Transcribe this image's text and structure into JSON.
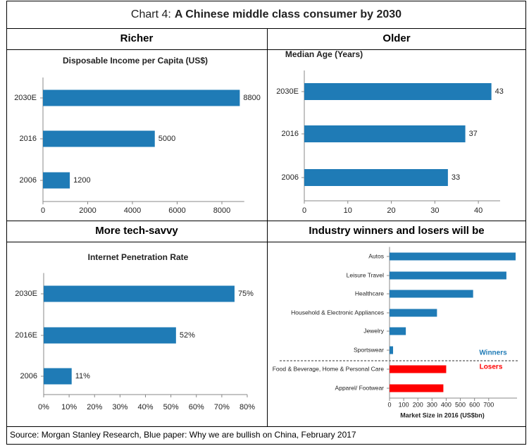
{
  "header": {
    "label": "Chart 4:",
    "title": "A Chinese middle class consumer by 2030"
  },
  "sections": [
    "Richer",
    "Older",
    "More tech-savvy",
    "Industry winners and losers will be"
  ],
  "chart_data": [
    {
      "type": "bar",
      "orientation": "horizontal",
      "title": "Disposable Income per Capita (US$)",
      "categories": [
        "2030E",
        "2016",
        "2006"
      ],
      "values": [
        8800,
        5000,
        1200
      ],
      "color": "#1f7bb6",
      "xlim": [
        0,
        9000
      ],
      "xticks": [
        0,
        2000,
        4000,
        6000,
        8000
      ]
    },
    {
      "type": "bar",
      "orientation": "horizontal",
      "title": "Median Age (Years)",
      "categories": [
        "2030E",
        "2016",
        "2006"
      ],
      "values": [
        43,
        37,
        33
      ],
      "color": "#1f7bb6",
      "xlim": [
        0,
        45
      ],
      "xticks": [
        0,
        10,
        20,
        30,
        40
      ]
    },
    {
      "type": "bar",
      "orientation": "horizontal",
      "title": "Internet Penetration Rate",
      "categories": [
        "2030E",
        "2016E",
        "2006"
      ],
      "values": [
        75,
        52,
        11
      ],
      "value_labels": [
        "75%",
        "52%",
        "11%"
      ],
      "color": "#1f7bb6",
      "xlim": [
        0,
        80
      ],
      "xticks": [
        {
          "value": 0,
          "label": "0%"
        },
        {
          "value": 10,
          "label": "10%"
        },
        {
          "value": 20,
          "label": "20%"
        },
        {
          "value": 30,
          "label": "30%"
        },
        {
          "value": 40,
          "label": "40%"
        },
        {
          "value": 50,
          "label": "50%"
        },
        {
          "value": 60,
          "label": "60%"
        },
        {
          "value": 70,
          "label": "70%"
        },
        {
          "value": 80,
          "label": "80%"
        }
      ]
    },
    {
      "type": "bar",
      "orientation": "horizontal",
      "xlabel": "Market Size in 2016 (US$bn)",
      "categories": [
        "Autos",
        "Leisure Travel",
        "Healthcare",
        "Household & Electronic Appliances",
        "Jewelry",
        "Sportswear",
        "Food & Beverage, Home & Personal Care",
        "Apparel/ Footwear"
      ],
      "series": [
        {
          "name": "Winners",
          "color": "#1f7bb6",
          "values": [
            890,
            825,
            590,
            335,
            115,
            25,
            null,
            null
          ]
        },
        {
          "name": "Losers",
          "color": "#ff0000",
          "values": [
            null,
            null,
            null,
            null,
            null,
            null,
            400,
            380
          ]
        }
      ],
      "xlim": [
        0,
        900
      ],
      "xticks": [
        0,
        100,
        200,
        300,
        400,
        500,
        600,
        700
      ]
    }
  ],
  "source": "Source: Morgan Stanley Research, Blue paper: Why we are bullish on China, February 2017"
}
